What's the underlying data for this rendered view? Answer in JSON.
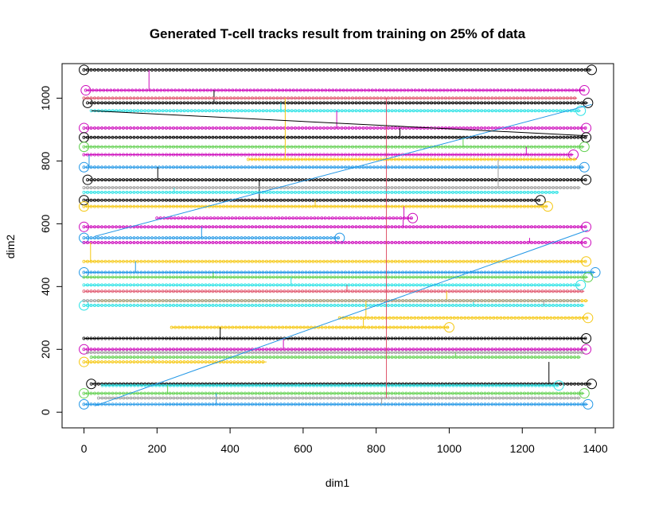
{
  "chart_data": {
    "type": "line",
    "title": "Generated T-cell tracks result from training on 25% of data",
    "xlabel": "dim1",
    "ylabel": "dim2",
    "xlim": [
      -60,
      1450
    ],
    "ylim": [
      -50,
      1110
    ],
    "x_ticks": [
      "0",
      "200",
      "400",
      "600",
      "800",
      "1000",
      "1200",
      "1400"
    ],
    "y_ticks": [
      "0",
      "200",
      "400",
      "600",
      "800",
      "1000"
    ],
    "x_tick_values": [
      0,
      200,
      400,
      600,
      800,
      1000,
      1200,
      1400
    ],
    "y_tick_values": [
      0,
      200,
      400,
      600,
      800,
      1000
    ],
    "grid": false,
    "legend": "none",
    "palette": [
      "#000000",
      "#DF536B",
      "#61D04F",
      "#2297E6",
      "#28E2E5",
      "#CD0BBC",
      "#F5C710",
      "#9E9E9E"
    ],
    "series": [
      {
        "color": "#000000",
        "y": 1090,
        "x": [
          0,
          1390
        ],
        "start_marker": true,
        "end_marker": true
      },
      {
        "color": "#CD0BBC",
        "y": 1025,
        "x": [
          5,
          1370
        ],
        "start_marker": true,
        "end_marker": true
      },
      {
        "color": "#000000",
        "y": 985,
        "x": [
          10,
          1380
        ],
        "start_marker": true,
        "end_marker": true
      },
      {
        "color": "#28E2E5",
        "y": 960,
        "x": [
          20,
          1360
        ],
        "start_marker": false,
        "end_marker": true
      },
      {
        "color": "#CD0BBC",
        "y": 905,
        "x": [
          0,
          1375
        ],
        "start_marker": true,
        "end_marker": true
      },
      {
        "color": "#000000",
        "y": 875,
        "x": [
          0,
          1375
        ],
        "start_marker": true,
        "end_marker": true
      },
      {
        "color": "#61D04F",
        "y": 845,
        "x": [
          0,
          1370
        ],
        "start_marker": true,
        "end_marker": true
      },
      {
        "color": "#CD0BBC",
        "y": 820,
        "x": [
          0,
          1340
        ],
        "start_marker": false,
        "end_marker": true
      },
      {
        "color": "#2297E6",
        "y": 780,
        "x": [
          0,
          1370
        ],
        "start_marker": true,
        "end_marker": true
      },
      {
        "color": "#000000",
        "y": 740,
        "x": [
          10,
          1375
        ],
        "start_marker": true,
        "end_marker": true
      },
      {
        "color": "#000000",
        "y": 675,
        "x": [
          0,
          1250
        ],
        "start_marker": true,
        "end_marker": true
      },
      {
        "color": "#F5C710",
        "y": 655,
        "x": [
          0,
          1270
        ],
        "start_marker": true,
        "end_marker": true
      },
      {
        "color": "#CD0BBC",
        "y": 618,
        "x": [
          200,
          900
        ],
        "start_marker": false,
        "end_marker": true
      },
      {
        "color": "#CD0BBC",
        "y": 590,
        "x": [
          0,
          1375
        ],
        "start_marker": true,
        "end_marker": true
      },
      {
        "color": "#2297E6",
        "y": 555,
        "x": [
          0,
          700
        ],
        "start_marker": true,
        "end_marker": true
      },
      {
        "color": "#CD0BBC",
        "y": 540,
        "x": [
          0,
          1375
        ],
        "start_marker": false,
        "end_marker": true
      },
      {
        "color": "#F5C710",
        "y": 480,
        "x": [
          0,
          1375
        ],
        "start_marker": false,
        "end_marker": true
      },
      {
        "color": "#2297E6",
        "y": 445,
        "x": [
          0,
          1400
        ],
        "start_marker": true,
        "end_marker": true
      },
      {
        "color": "#61D04F",
        "y": 430,
        "x": [
          0,
          1380
        ],
        "start_marker": false,
        "end_marker": true
      },
      {
        "color": "#28E2E5",
        "y": 405,
        "x": [
          0,
          1360
        ],
        "start_marker": false,
        "end_marker": true
      },
      {
        "color": "#DF536B",
        "y": 385,
        "x": [
          0,
          1370
        ],
        "start_marker": false,
        "end_marker": false
      },
      {
        "color": "#F5C710",
        "y": 355,
        "x": [
          40,
          1380
        ],
        "start_marker": false,
        "end_marker": false
      },
      {
        "color": "#28E2E5",
        "y": 340,
        "x": [
          0,
          1370
        ],
        "start_marker": true,
        "end_marker": false
      },
      {
        "color": "#9E9E9E",
        "y": 355,
        "x": [
          0,
          1360
        ],
        "start_marker": false,
        "end_marker": false
      },
      {
        "color": "#F5C710",
        "y": 300,
        "x": [
          700,
          1380
        ],
        "start_marker": false,
        "end_marker": true
      },
      {
        "color": "#F5C710",
        "y": 270,
        "x": [
          240,
          1000
        ],
        "start_marker": false,
        "end_marker": true
      },
      {
        "color": "#000000",
        "y": 235,
        "x": [
          0,
          1375
        ],
        "start_marker": false,
        "end_marker": true
      },
      {
        "color": "#CD0BBC",
        "y": 200,
        "x": [
          0,
          1375
        ],
        "start_marker": true,
        "end_marker": true
      },
      {
        "color": "#9E9E9E",
        "y": 190,
        "x": [
          10,
          1370
        ],
        "start_marker": false,
        "end_marker": false
      },
      {
        "color": "#61D04F",
        "y": 175,
        "x": [
          20,
          1360
        ],
        "start_marker": false,
        "end_marker": false
      },
      {
        "color": "#F5C710",
        "y": 160,
        "x": [
          0,
          500
        ],
        "start_marker": true,
        "end_marker": false
      },
      {
        "color": "#000000",
        "y": 90,
        "x": [
          20,
          1390
        ],
        "start_marker": true,
        "end_marker": true
      },
      {
        "color": "#28E2E5",
        "y": 85,
        "x": [
          50,
          1300
        ],
        "start_marker": false,
        "end_marker": true
      },
      {
        "color": "#61D04F",
        "y": 60,
        "x": [
          0,
          1370
        ],
        "start_marker": true,
        "end_marker": true
      },
      {
        "color": "#2297E6",
        "y": 25,
        "x": [
          0,
          1380
        ],
        "start_marker": true,
        "end_marker": true
      },
      {
        "color": "#9E9E9E",
        "y": 45,
        "x": [
          40,
          1360
        ],
        "start_marker": false,
        "end_marker": false
      },
      {
        "color": "#DF536B",
        "y": 1000,
        "x": [
          0,
          1350
        ],
        "start_marker": false,
        "end_marker": false
      },
      {
        "color": "#F5C710",
        "y": 805,
        "x": [
          450,
          1350
        ],
        "start_marker": false,
        "end_marker": false
      },
      {
        "color": "#9E9E9E",
        "y": 715,
        "x": [
          0,
          1360
        ],
        "start_marker": false,
        "end_marker": false
      },
      {
        "color": "#28E2E5",
        "y": 700,
        "x": [
          0,
          1300
        ],
        "start_marker": false,
        "end_marker": false
      }
    ]
  }
}
